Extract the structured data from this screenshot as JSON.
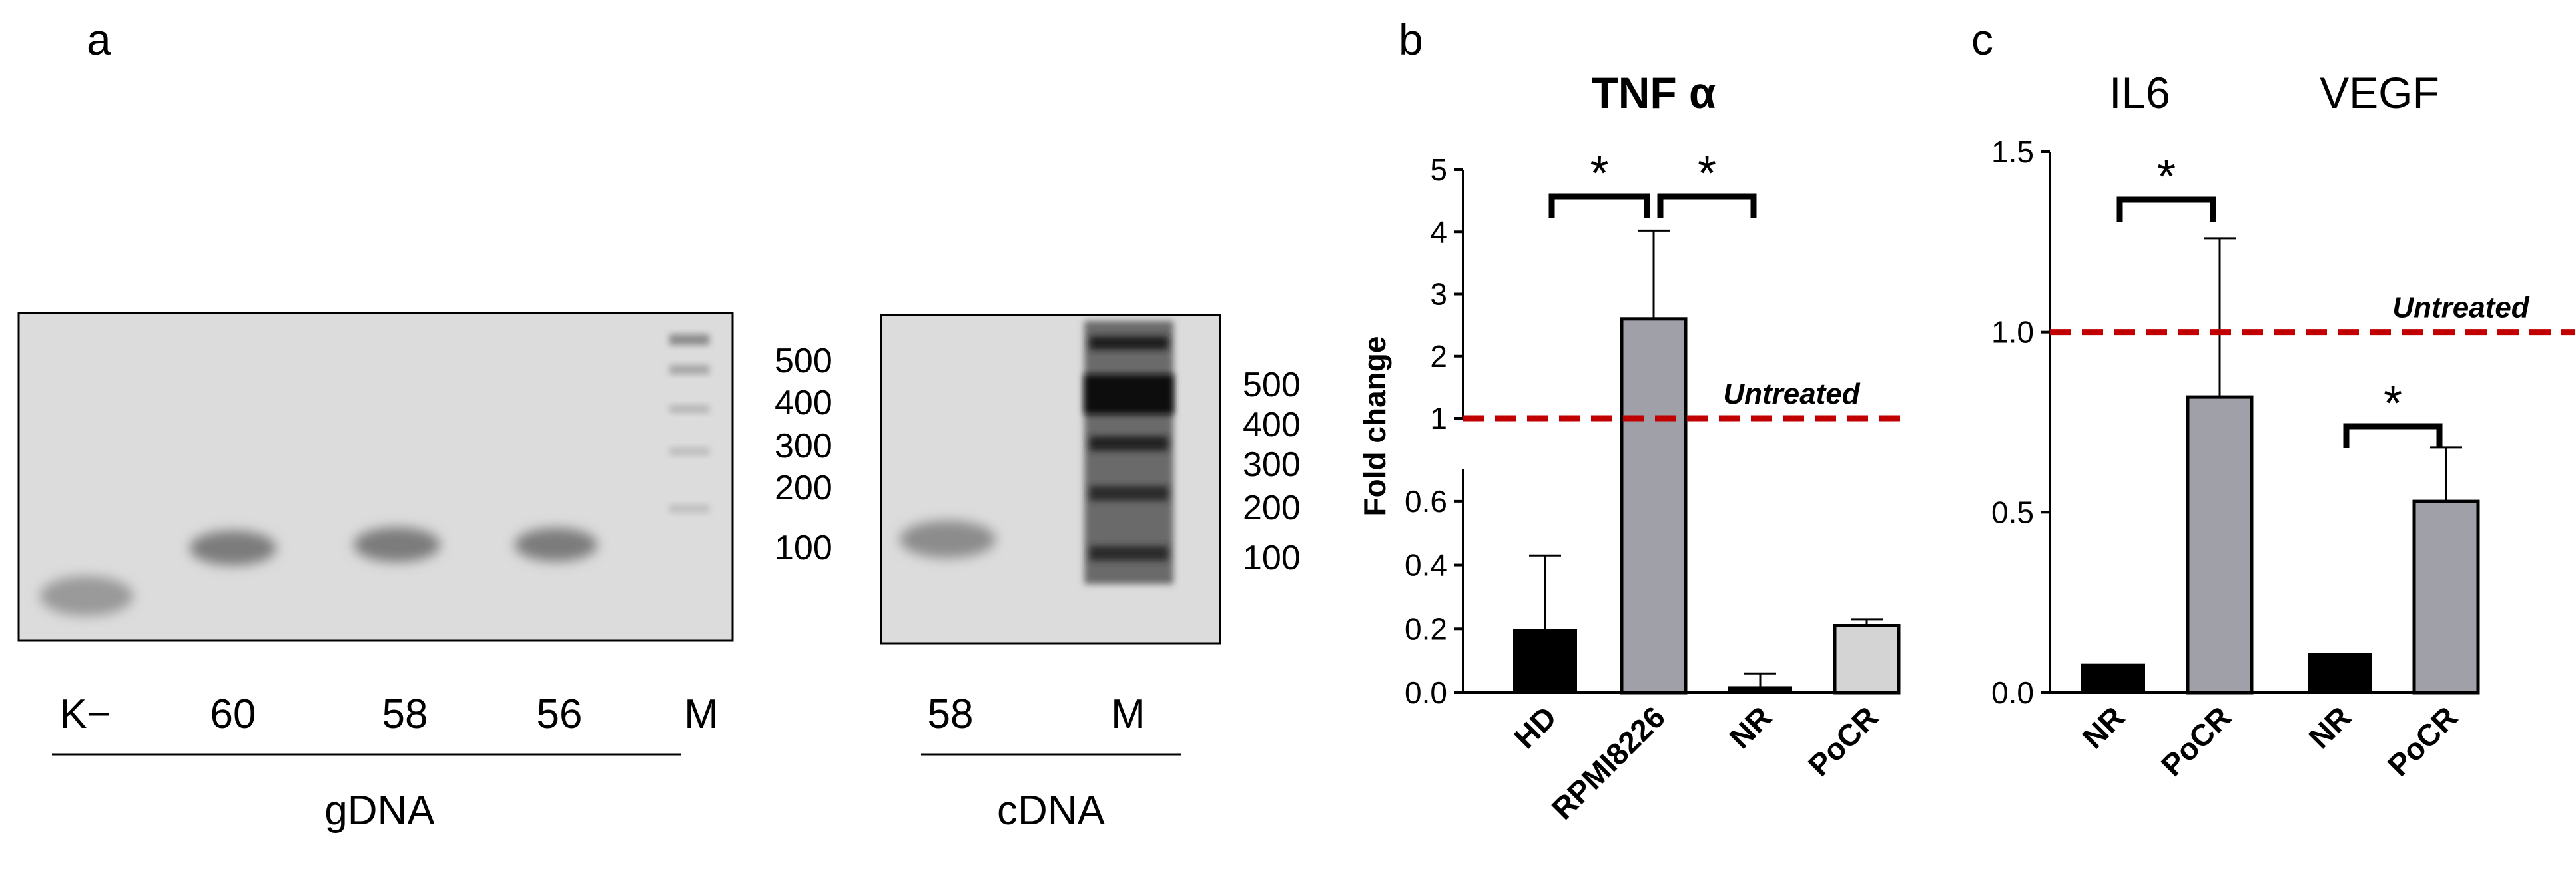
{
  "panel_a": {
    "letter": "a",
    "gdna_lanes": [
      "K−",
      "60",
      "58",
      "56",
      "M"
    ],
    "gdna_label": "gDNA",
    "gdna_markers": [
      "500",
      "400",
      "300",
      "200",
      "100"
    ],
    "cdna_lanes": [
      "58",
      "M"
    ],
    "cdna_label": "cDNA",
    "cdna_markers": [
      "500",
      "400",
      "300",
      "200",
      "100"
    ]
  },
  "panel_b": {
    "letter": "b"
  },
  "panel_c": {
    "letter": "c"
  },
  "colors": {
    "black": "#000000",
    "gray": "#a0a0a8",
    "light_gray": "#d4d4d4",
    "dashed_line": "#c00000"
  },
  "chart_data": [
    {
      "type": "bar",
      "title": "TNF α",
      "ylabel": "Fold change",
      "categories": [
        "HD",
        "RPMI8226",
        "NR",
        "PoCR"
      ],
      "values": [
        0.2,
        2.6,
        0.02,
        0.21
      ],
      "errors": [
        0.23,
        1.42,
        0.04,
        0.02
      ],
      "bar_colors": [
        "black",
        "gray",
        "black",
        "light_gray"
      ],
      "axis": "broken",
      "lower_range": [
        0,
        0.7
      ],
      "upper_range": [
        1,
        5
      ],
      "lower_ticks": [
        "0.0",
        "0.2",
        "0.4",
        "0.6"
      ],
      "upper_ticks": [
        "1",
        "2",
        "3",
        "4",
        "5"
      ],
      "reference_line": {
        "value": 1,
        "label": "Untreated"
      },
      "significance": [
        {
          "pair": [
            "HD",
            "RPMI8226"
          ],
          "label": "*"
        },
        {
          "pair": [
            "RPMI8226",
            "NR"
          ],
          "label": "*"
        }
      ]
    },
    {
      "type": "bar",
      "groups": [
        {
          "name": "IL6",
          "categories": [
            "NR",
            "PoCR"
          ],
          "values": [
            0.08,
            0.82
          ],
          "errors": [
            0,
            0.44
          ]
        },
        {
          "name": "VEGF",
          "categories": [
            "NR",
            "PoCR"
          ],
          "values": [
            0.11,
            0.53
          ],
          "errors": [
            0,
            0.15
          ]
        }
      ],
      "bar_colors": [
        "black",
        "gray",
        "black",
        "gray"
      ],
      "ylim": [
        0,
        1.5
      ],
      "yticks": [
        "0.0",
        "0.5",
        "1.0",
        "1.5"
      ],
      "reference_line": {
        "value": 1.0,
        "label": "Untreated"
      },
      "significance": [
        {
          "group": "IL6",
          "pair": [
            "NR",
            "PoCR"
          ],
          "label": "*"
        },
        {
          "group": "VEGF",
          "pair": [
            "NR",
            "PoCR"
          ],
          "label": "*"
        }
      ]
    }
  ]
}
